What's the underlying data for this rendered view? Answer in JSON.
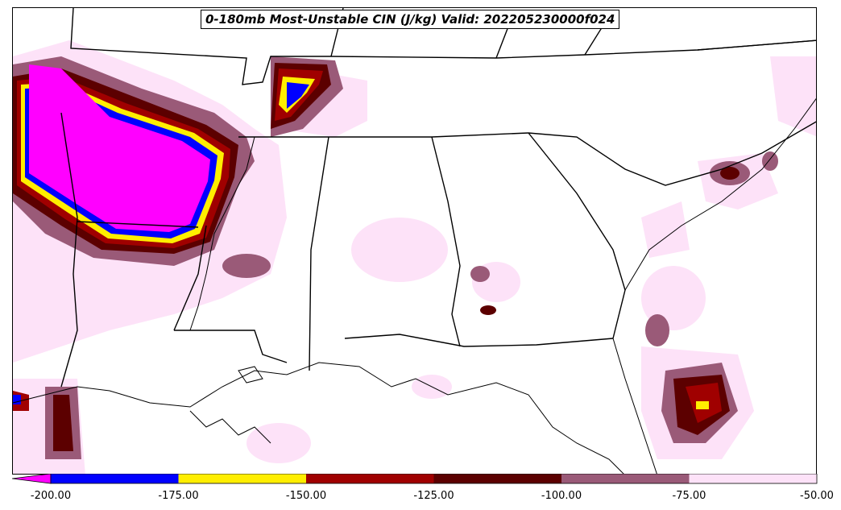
{
  "title": "0-180mb Most-Unstable CIN (J/kg) Valid: 202205230000f024",
  "colorbar": {
    "tick_labels": [
      "-200.00",
      "-175.00",
      "-150.00",
      "-125.00",
      "-100.00",
      "-75.00",
      "-50.00"
    ],
    "bins": [
      {
        "range": [
          -225,
          -200
        ],
        "color": "#ff00ff"
      },
      {
        "range": [
          -200,
          -175
        ],
        "color": "#0000ff"
      },
      {
        "range": [
          -175,
          -150
        ],
        "color": "#ffee00"
      },
      {
        "range": [
          -150,
          -125
        ],
        "color": "#a00000"
      },
      {
        "range": [
          -125,
          -100
        ],
        "color": "#5c0000"
      },
      {
        "range": [
          -100,
          -75
        ],
        "color": "#9a5a78"
      },
      {
        "range": [
          -75,
          -50
        ],
        "color": "#fde2f8"
      }
    ],
    "extend": "min"
  }
}
